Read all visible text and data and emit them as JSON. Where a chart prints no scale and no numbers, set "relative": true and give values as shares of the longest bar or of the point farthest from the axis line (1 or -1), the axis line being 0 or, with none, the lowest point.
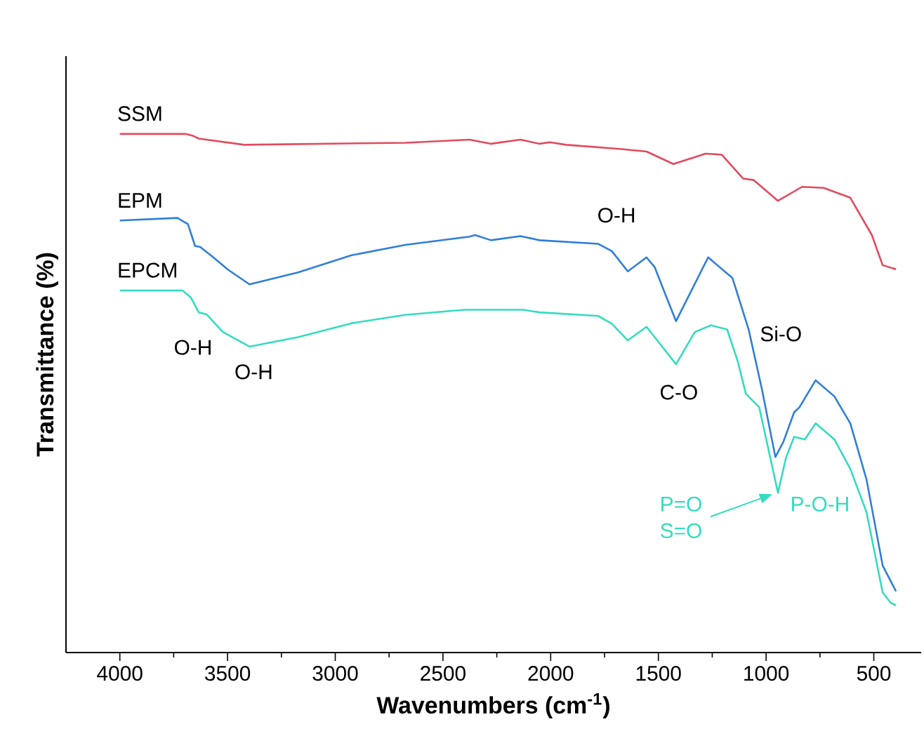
{
  "chart_data": {
    "type": "line",
    "relative": true,
    "xlabel": "Wavenumbers (cm$^{-1}$)",
    "ylabel": "Transmittance (%)",
    "xlim": [
      4250,
      280
    ],
    "xticks": [
      4000,
      {
        "value": 3750,
        "label": null
      },
      3500,
      {
        "value": 3250,
        "label": null
      },
      3000,
      {
        "value": 2750,
        "label": null
      },
      2500,
      {
        "value": 2250,
        "label": null
      },
      2000,
      {
        "value": 1750,
        "label": null
      },
      1500,
      {
        "value": 1250,
        "label": null
      },
      1000,
      {
        "value": 750,
        "label": null
      },
      500
    ],
    "grid": false,
    "marker": "none",
    "line_style": "solid",
    "tick_labels": "x",
    "series": [
      {
        "name": "SSM",
        "color": "#e24a5e",
        "x": [
          4000,
          3696,
          3658,
          3634,
          3422,
          2675,
          2377,
          2351,
          2277,
          2140,
          2052,
          2003,
          1928,
          1679,
          1555,
          1430,
          1281,
          1206,
          1107,
          1057,
          945,
          833,
          733,
          609,
          509,
          459,
          397
        ],
        "values": [
          1.0,
          1.0,
          0.996,
          0.991,
          0.979,
          0.983,
          0.989,
          0.987,
          0.981,
          0.989,
          0.981,
          0.984,
          0.979,
          0.971,
          0.966,
          0.942,
          0.962,
          0.96,
          0.914,
          0.911,
          0.871,
          0.898,
          0.896,
          0.877,
          0.805,
          0.747,
          0.739
        ]
      },
      {
        "name": "EPM",
        "color": "#2f7ed8",
        "x": [
          4000,
          3733,
          3684,
          3651,
          3627,
          3572,
          3497,
          3398,
          3173,
          2924,
          2675,
          2377,
          2351,
          2277,
          2140,
          2052,
          1779,
          1716,
          1642,
          1555,
          1517,
          1468,
          1418,
          1269,
          1156,
          1144,
          1081,
          1020,
          957,
          920,
          870,
          845,
          770,
          683,
          609,
          534,
          459,
          397
        ],
        "values": [
          0.833,
          0.838,
          0.826,
          0.784,
          0.782,
          0.764,
          0.738,
          0.71,
          0.733,
          0.766,
          0.786,
          0.802,
          0.805,
          0.795,
          0.803,
          0.795,
          0.788,
          0.774,
          0.735,
          0.762,
          0.743,
          0.691,
          0.639,
          0.762,
          0.722,
          0.706,
          0.623,
          0.509,
          0.377,
          0.406,
          0.463,
          0.473,
          0.525,
          0.494,
          0.442,
          0.334,
          0.168,
          0.118
        ]
      },
      {
        "name": "EPCM",
        "color": "#33dcc0",
        "x": [
          4000,
          3709,
          3671,
          3634,
          3597,
          3522,
          3398,
          3173,
          2924,
          2675,
          2401,
          2128,
          2052,
          1779,
          1716,
          1642,
          1555,
          1418,
          1331,
          1256,
          1181,
          1131,
          1094,
          1032,
          945,
          908,
          870,
          820,
          770,
          683,
          609,
          534,
          459,
          422,
          397
        ],
        "values": [
          0.698,
          0.698,
          0.685,
          0.656,
          0.652,
          0.618,
          0.59,
          0.608,
          0.635,
          0.651,
          0.661,
          0.661,
          0.656,
          0.649,
          0.634,
          0.602,
          0.628,
          0.556,
          0.618,
          0.631,
          0.623,
          0.561,
          0.499,
          0.473,
          0.308,
          0.375,
          0.416,
          0.411,
          0.442,
          0.411,
          0.354,
          0.271,
          0.116,
          0.096,
          0.091
        ]
      }
    ],
    "annotations": [
      {
        "text": "O-H",
        "x": 1642,
        "y": 0.735
      },
      {
        "text": "O-H",
        "x": 3634,
        "y": 0.656
      },
      {
        "text": "O-H",
        "x": 3398,
        "y": 0.59
      },
      {
        "text": "C-O",
        "x": 1418,
        "y": 0.556
      },
      {
        "text": "Si-O",
        "x": 1081,
        "y": 0.623
      },
      "P=O",
      "S=O",
      {
        "text": "P-O-H",
        "x": 945,
        "y": 0.308
      }
    ]
  }
}
